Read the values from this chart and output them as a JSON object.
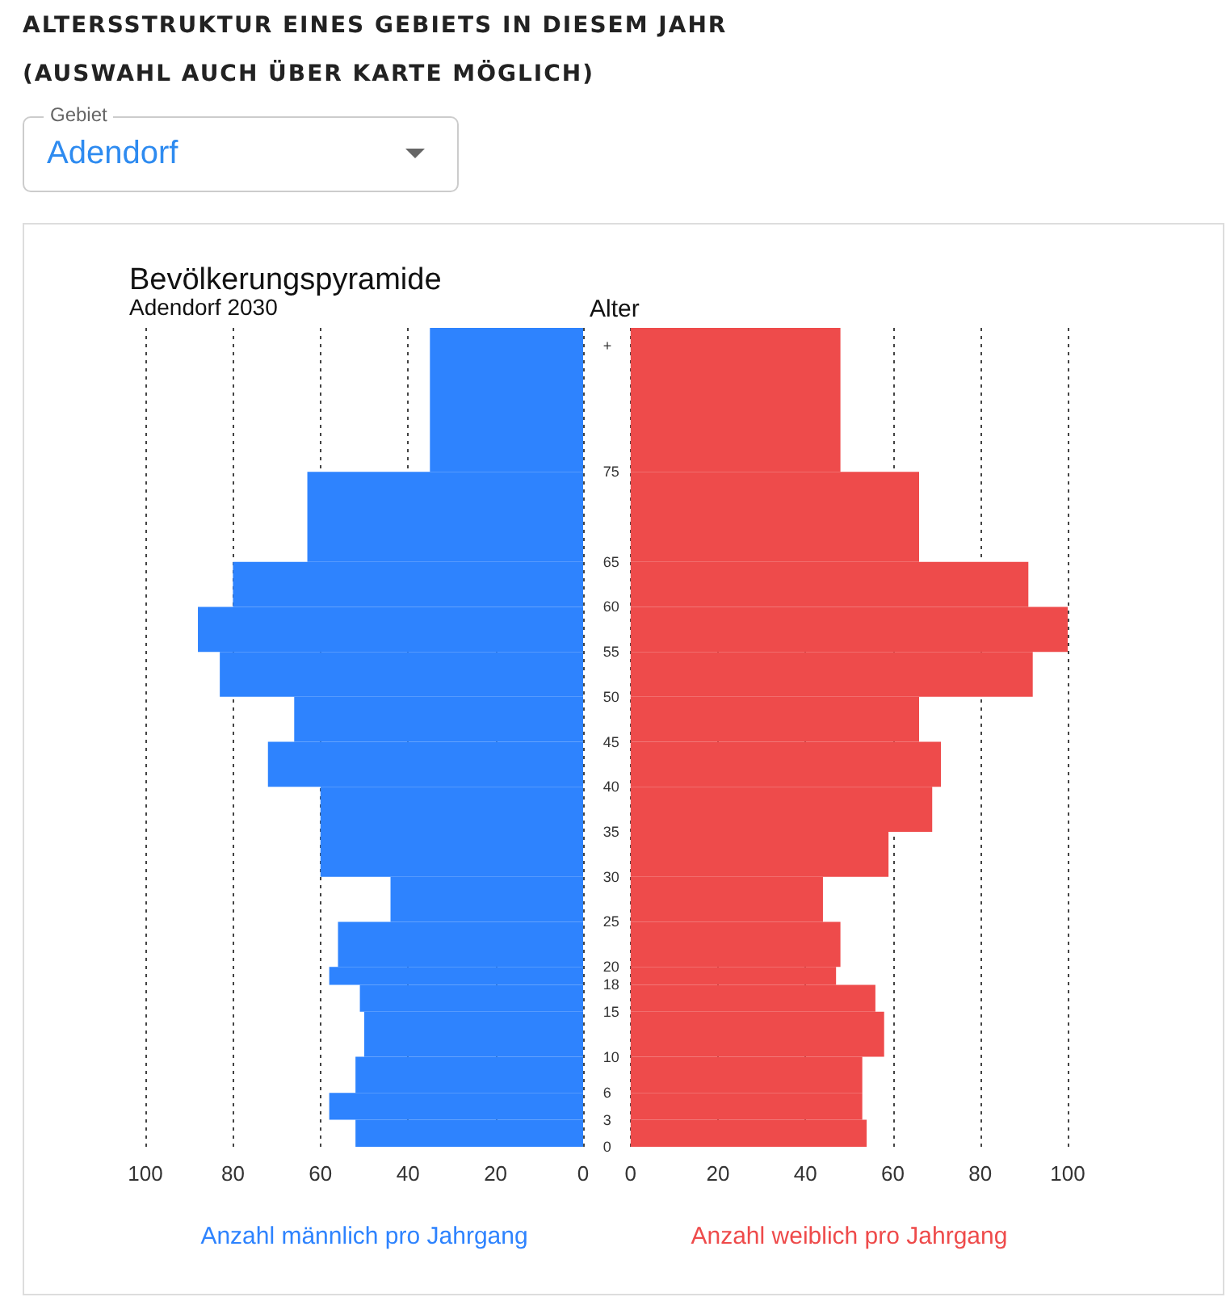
{
  "chart_data": [
    {
      "type": "other",
      "title": "ALTERSSTRUKTUR EINES GEBIETS IN DIESEM JAHR",
      "subtitle": "(AUSWAHL AUCH ÜBER KARTE MÖGLICH)",
      "annotations": [
        "Gebiet",
        "Adendorf"
      ]
    },
    {
      "type": "histogram",
      "orientation": "horizontal",
      "title": "Bevölkerungspyramide",
      "subtitle": "Adendorf 2030",
      "xlabel": "Anzahl männlich pro Jahrgang",
      "color": "#2e83fe",
      "bins": [
        0,
        3,
        6,
        10,
        15,
        18,
        20,
        25,
        30,
        35,
        40,
        45,
        50,
        55,
        60,
        65,
        75,
        91
      ],
      "values": [
        52,
        58,
        52,
        50,
        51,
        58,
        56,
        44,
        60,
        60,
        72,
        66,
        83,
        88,
        80,
        63,
        35
      ],
      "xlim": [
        100,
        0
      ],
      "xticks": [
        100,
        80,
        60,
        40,
        20,
        0
      ],
      "ylim": [
        0,
        91
      ],
      "tick_labels": "x",
      "grid": "x"
    },
    {
      "type": "histogram",
      "orientation": "horizontal",
      "xlabel": "Anzahl weiblich pro Jahrgang",
      "ylabel": "Alter",
      "color": "#ee4b4b",
      "bins": [
        0,
        3,
        6,
        10,
        15,
        18,
        20,
        25,
        30,
        35,
        40,
        45,
        50,
        55,
        60,
        65,
        75,
        91
      ],
      "values": [
        54,
        53,
        53,
        58,
        56,
        47,
        48,
        44,
        59,
        69,
        71,
        66,
        92,
        100,
        91,
        66,
        48
      ],
      "xlim": [
        0,
        100
      ],
      "xticks": [
        0,
        20,
        40,
        60,
        80,
        100
      ],
      "ylim": [
        0,
        91
      ],
      "yticks": [
        0,
        3,
        6,
        10,
        15,
        18,
        20,
        25,
        30,
        35,
        40,
        45,
        50,
        55,
        60,
        65,
        75,
        {
          "value": 89,
          "label": "+"
        }
      ],
      "grid": "x"
    }
  ]
}
